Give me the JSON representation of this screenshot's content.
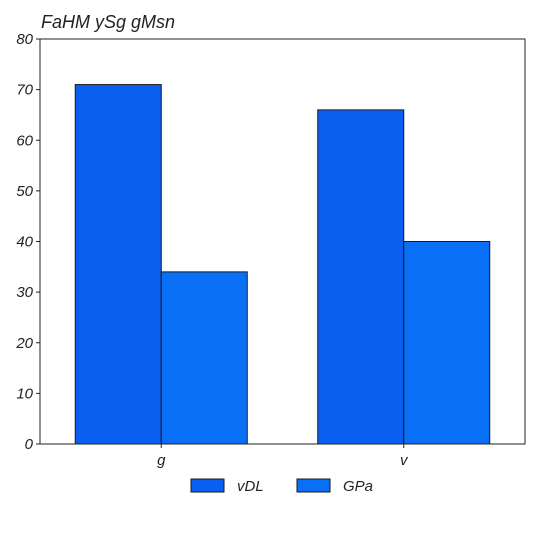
{
  "chart_data": {
    "type": "bar",
    "title": "FaHM ySg gMsn",
    "xlabel": "",
    "ylabel": "",
    "categories": [
      "g",
      "v"
    ],
    "series": [
      {
        "name": "vDL",
        "values": [
          71,
          66
        ],
        "color": "#0a5ef0"
      },
      {
        "name": "GPa",
        "values": [
          34,
          40
        ],
        "color": "#0a6ff7"
      }
    ],
    "ylim": [
      0,
      80
    ],
    "yticks": [
      0,
      10,
      20,
      30,
      40,
      50,
      60,
      70,
      80
    ],
    "grid": false,
    "legend_position": "bottom"
  }
}
